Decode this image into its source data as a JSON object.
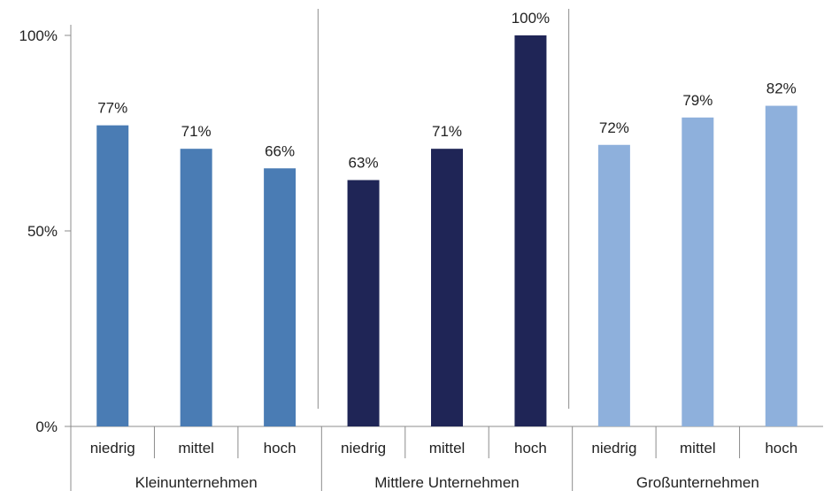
{
  "chart_data": {
    "type": "bar",
    "title": "",
    "xlabel": "",
    "ylabel": "",
    "ylim": [
      0,
      100
    ],
    "y_ticks": [
      {
        "value": 0,
        "label": "0%"
      },
      {
        "value": 50,
        "label": "50%"
      },
      {
        "value": 100,
        "label": "100%"
      }
    ],
    "grid": false,
    "groups": [
      {
        "name": "Kleinunternehmen",
        "color": "#4A7CB4"
      },
      {
        "name": "Mittlere Unternehmen",
        "color": "#1F2556"
      },
      {
        "name": "Großunternehmen",
        "color": "#8EB0DC"
      }
    ],
    "categories": [
      "niedrig",
      "mittel",
      "hoch",
      "niedrig",
      "mittel",
      "hoch",
      "niedrig",
      "mittel",
      "hoch"
    ],
    "bar_group": [
      0,
      0,
      0,
      1,
      1,
      1,
      2,
      2,
      2
    ],
    "values": [
      77,
      71,
      66,
      63,
      71,
      100,
      72,
      79,
      82
    ],
    "value_labels": [
      "77%",
      "71%",
      "66%",
      "63%",
      "71%",
      "100%",
      "72%",
      "79%",
      "82%"
    ]
  }
}
